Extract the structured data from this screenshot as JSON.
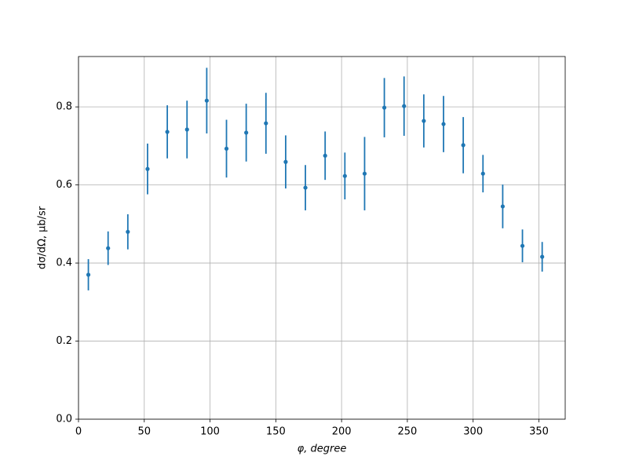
{
  "chart_data": {
    "type": "errorbar",
    "xlabel": "φ, degree",
    "ylabel": "dσ/dΩ, μb/sr",
    "x": [
      7.5,
      22.5,
      37.5,
      52.5,
      67.5,
      82.5,
      97.5,
      112.5,
      127.5,
      142.5,
      157.5,
      172.5,
      187.5,
      202.5,
      217.5,
      232.5,
      247.5,
      262.5,
      277.5,
      292.5,
      307.5,
      322.5,
      337.5,
      352.5
    ],
    "values": [
      0.37,
      0.438,
      0.48,
      0.641,
      0.736,
      0.742,
      0.816,
      0.693,
      0.734,
      0.758,
      0.659,
      0.593,
      0.675,
      0.623,
      0.629,
      0.798,
      0.802,
      0.764,
      0.756,
      0.702,
      0.629,
      0.545,
      0.444,
      0.416
    ],
    "errors": [
      0.04,
      0.043,
      0.045,
      0.065,
      0.068,
      0.074,
      0.084,
      0.074,
      0.074,
      0.078,
      0.068,
      0.058,
      0.062,
      0.06,
      0.094,
      0.076,
      0.076,
      0.068,
      0.072,
      0.072,
      0.048,
      0.056,
      0.042,
      0.038
    ],
    "color": "#1f77b4",
    "xlim": [
      0,
      370
    ],
    "xticks": [
      0,
      50,
      100,
      150,
      200,
      250,
      300,
      350
    ],
    "ylim": [
      0,
      0.929
    ],
    "yticks": [
      {
        "value": 0,
        "label": "0.0"
      },
      0.2,
      0.4,
      0.6,
      0.8
    ],
    "grid": true
  }
}
